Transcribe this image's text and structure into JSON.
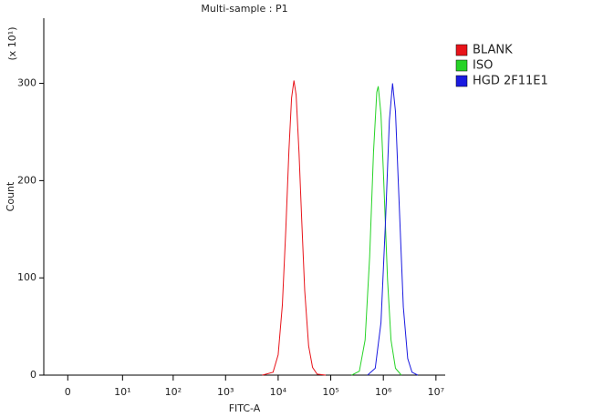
{
  "chart_data": {
    "type": "histogram-overlay",
    "title": "Multi-sample : P1",
    "x_label": "FITC-A",
    "y_label": "Count",
    "y_multiplier": "(x 10¹)",
    "x_scale": "biexponential",
    "xlim": [
      -0.65,
      15000000
    ],
    "xticks": [
      0,
      {
        "value": 10,
        "label": "10¹"
      },
      {
        "value": 100,
        "label": "10²"
      },
      {
        "value": 1000,
        "label": "10³"
      },
      {
        "value": 10000,
        "label": "10⁴"
      },
      {
        "value": 100000,
        "label": "10⁵"
      },
      {
        "value": 1000000,
        "label": "10⁶"
      },
      {
        "value": 10000000,
        "label": "10⁷"
      }
    ],
    "ylim": [
      0,
      367
    ],
    "yticks": [
      0,
      100,
      200,
      300
    ],
    "legend": "right",
    "series": [
      {
        "name": "BLANK",
        "color": "#e8141a",
        "x": [
          5000,
          8000,
          10000,
          12000,
          14000,
          16000,
          18000,
          20000,
          22000,
          25000,
          28000,
          32000,
          38000,
          45000,
          55000,
          80000
        ],
        "values": [
          0,
          3,
          21,
          72,
          150,
          231,
          285,
          303,
          288,
          228,
          160,
          87,
          30,
          8,
          1,
          0
        ]
      },
      {
        "name": "ISO",
        "color": "#26d326",
        "x": [
          250000,
          350000,
          450000,
          550000,
          650000,
          750000,
          800000,
          900000,
          1000000,
          1200000,
          1400000,
          1700000,
          2200000
        ],
        "values": [
          0,
          4,
          36,
          122,
          229,
          291,
          297,
          268,
          210,
          98,
          36,
          7,
          0
        ]
      },
      {
        "name": "HGD 2F11E1",
        "color": "#1a1ae0",
        "x": [
          500000,
          700000,
          900000,
          1100000,
          1300000,
          1500000,
          1700000,
          2000000,
          2400000,
          2900000,
          3500000,
          4500000
        ],
        "values": [
          0,
          7,
          54,
          159,
          262,
          300,
          271,
          175,
          70,
          17,
          3,
          0
        ]
      }
    ]
  }
}
